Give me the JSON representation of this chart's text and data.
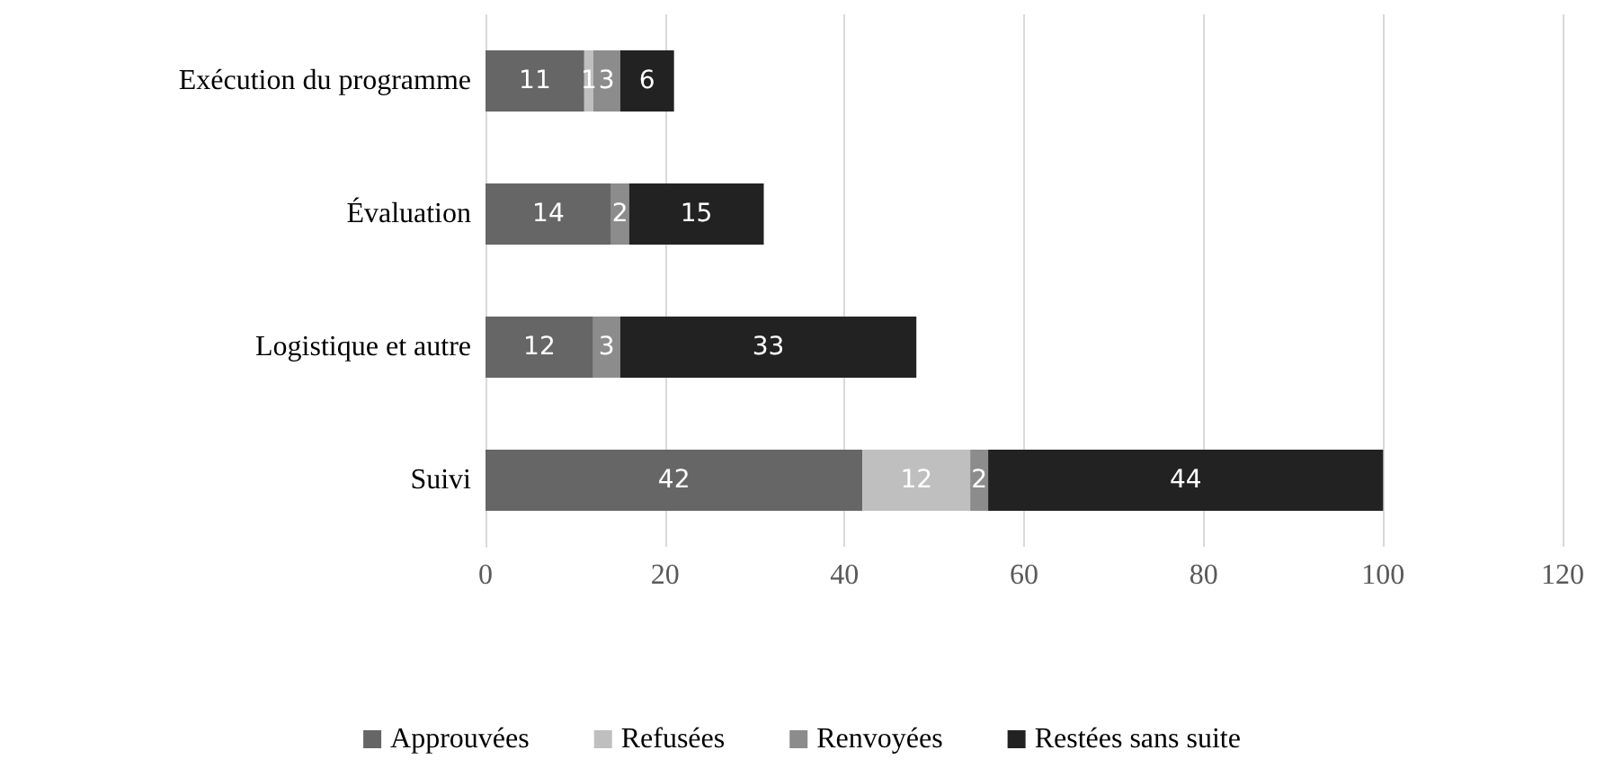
{
  "chart_data": {
    "type": "bar",
    "orientation": "horizontal",
    "stacked": true,
    "categories": [
      "Exécution du programme",
      "Évaluation",
      "Logistique et autre",
      "Suivi"
    ],
    "series": [
      {
        "name": "Approuvées",
        "color": "#666666",
        "values": [
          11,
          14,
          12,
          42
        ],
        "value_labels": [
          "11",
          "14",
          "12",
          "42"
        ]
      },
      {
        "name": "Refusées",
        "color": "#bfbfbf",
        "values": [
          1,
          0,
          0,
          12
        ],
        "value_labels": [
          "1",
          null,
          null,
          "12"
        ]
      },
      {
        "name": "Renvoyées",
        "color": "#8c8c8c",
        "values": [
          3,
          2,
          3,
          2
        ],
        "value_labels": [
          "3",
          "2",
          "3",
          "2"
        ]
      },
      {
        "name": "Restées sans suite",
        "color": "#222222",
        "values": [
          6,
          15,
          33,
          44
        ],
        "value_labels": [
          "6",
          "15",
          "33",
          "44"
        ]
      }
    ],
    "xlim": [
      0,
      120
    ],
    "xticks": [
      0,
      20,
      40,
      60,
      80,
      100,
      120
    ],
    "grid": "x",
    "legend": "bottom"
  }
}
